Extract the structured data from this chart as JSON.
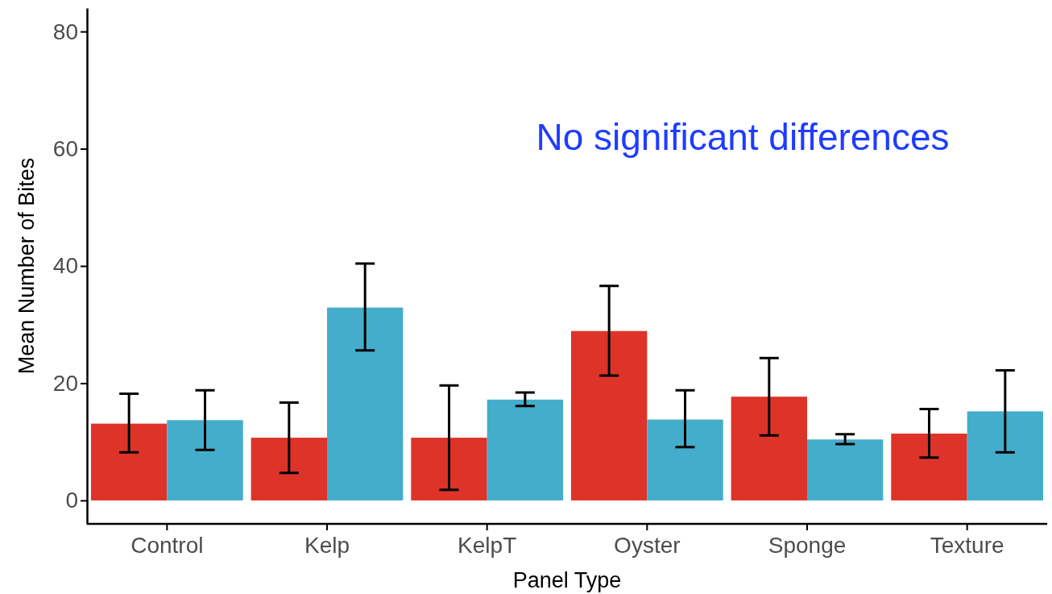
{
  "chart_data": {
    "type": "bar",
    "xlabel": "Panel Type",
    "ylabel": "Mean Number of Bites",
    "categories": [
      "Control",
      "Kelp",
      "KelpT",
      "Oyster",
      "Sponge",
      "Texture"
    ],
    "series": [
      {
        "color": "#dd3328",
        "values": [
          13.1,
          10.7,
          10.7,
          28.9,
          17.7,
          11.4
        ],
        "errors": [
          [
            8.2,
            18.2
          ],
          [
            4.7,
            16.7
          ],
          [
            1.8,
            19.6
          ],
          [
            21.3,
            36.6
          ],
          [
            11.1,
            24.3
          ],
          [
            7.3,
            15.6
          ]
        ]
      },
      {
        "color": "#43adcb",
        "values": [
          13.7,
          32.9,
          17.2,
          13.8,
          10.4,
          15.2
        ],
        "errors": [
          [
            8.6,
            18.8
          ],
          [
            25.6,
            40.4
          ],
          [
            16.1,
            18.4
          ],
          [
            9.1,
            18.8
          ],
          [
            9.6,
            11.3
          ],
          [
            8.2,
            22.2
          ]
        ]
      }
    ],
    "ylim": [
      -4,
      84
    ],
    "yticks": [
      0,
      20,
      40,
      60,
      80
    ],
    "annotations": [
      "No significant differences"
    ]
  }
}
